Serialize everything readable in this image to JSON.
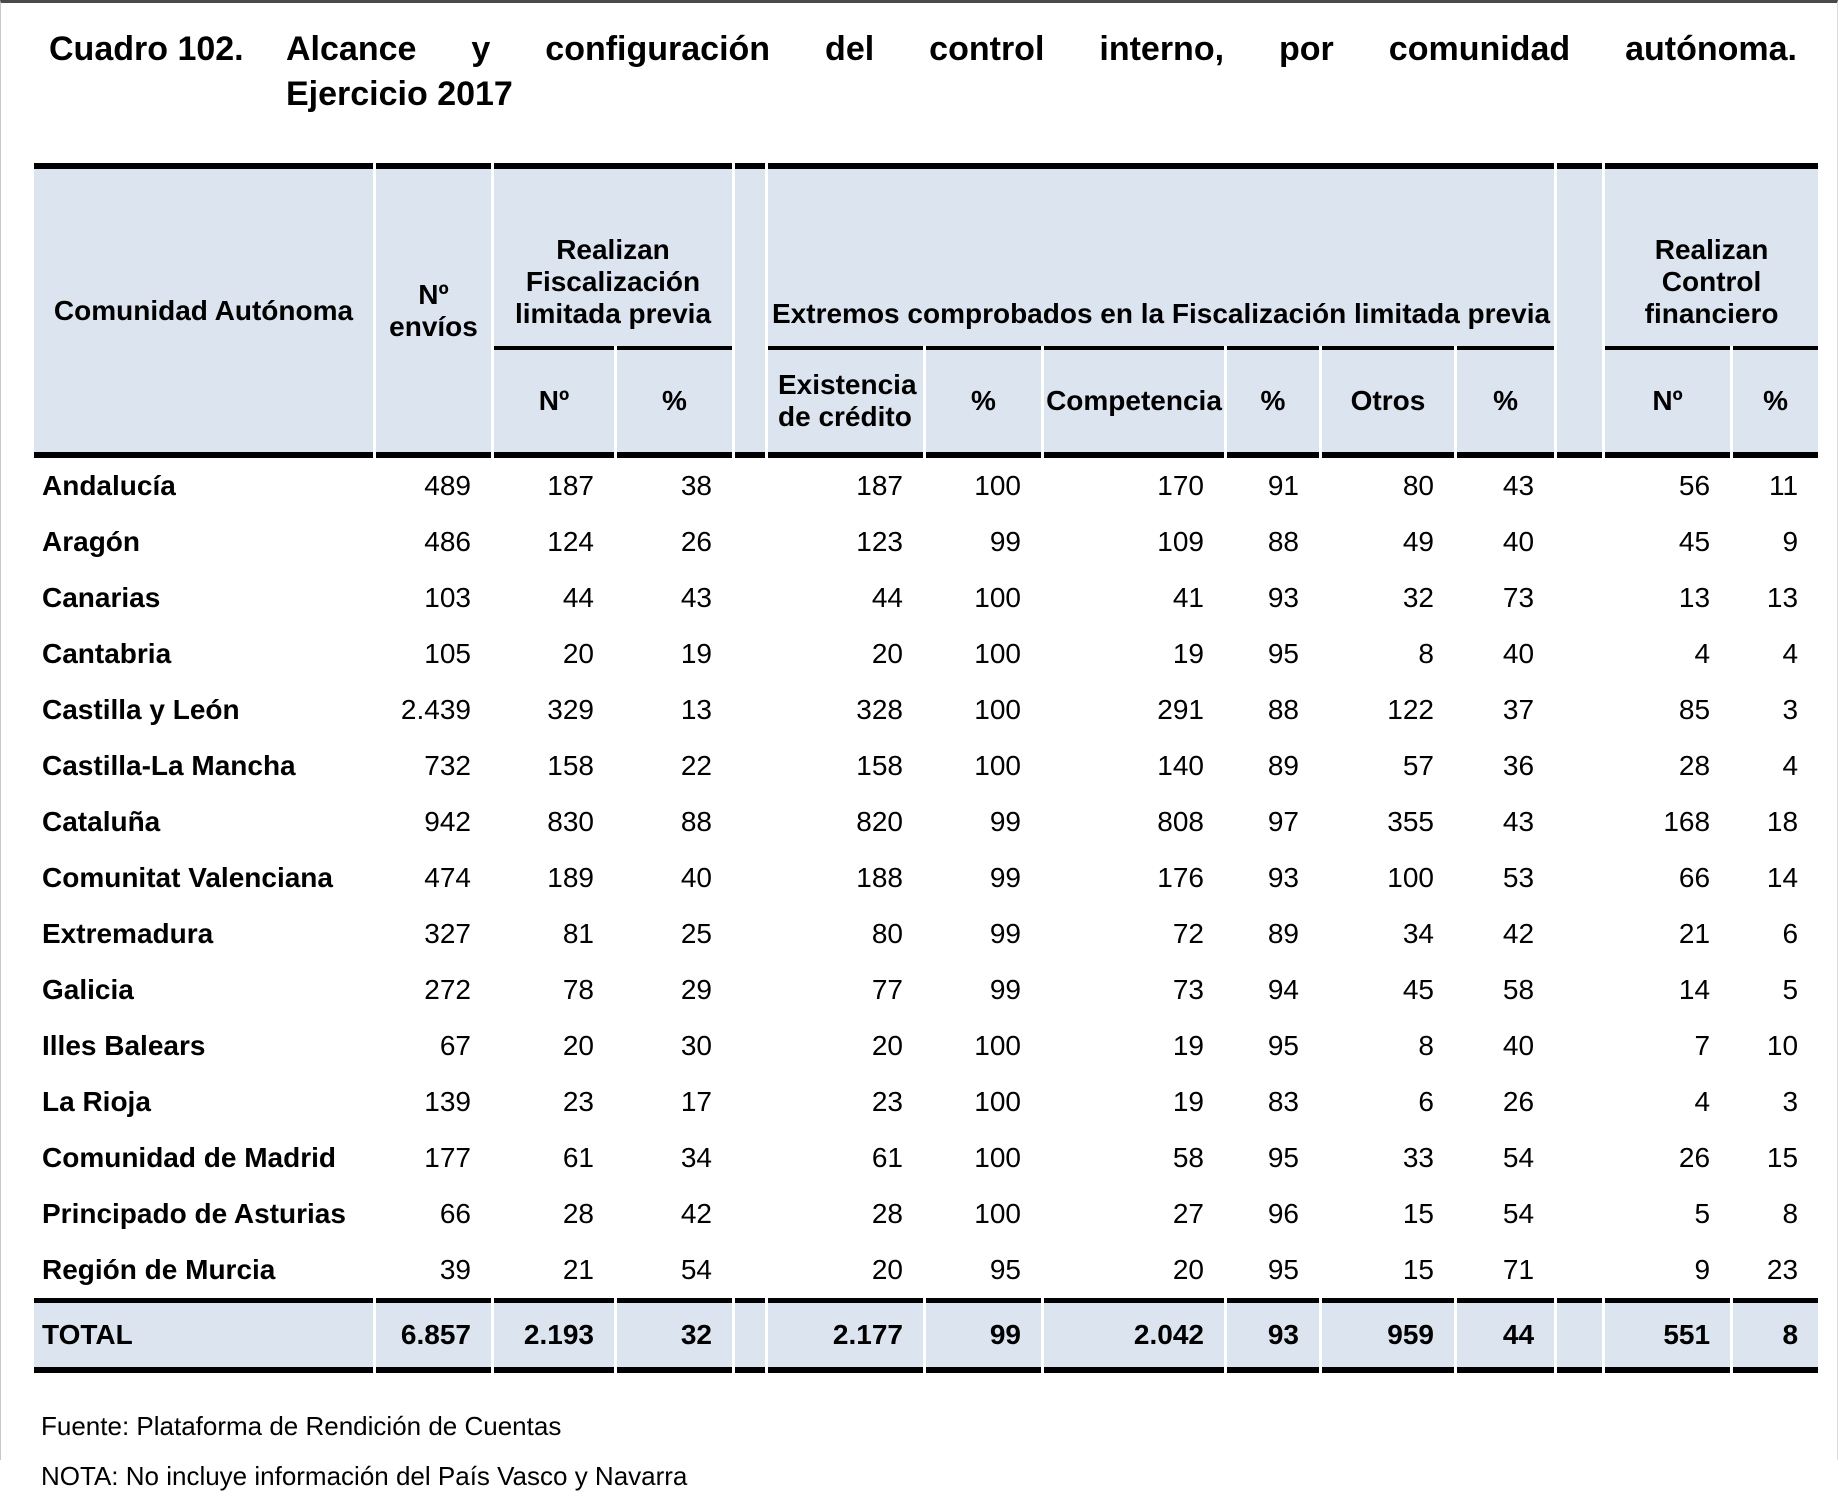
{
  "title": {
    "label": "Cuadro 102.",
    "line1": "Alcance y configuración del control interno, por comunidad autónoma.",
    "line2": "Ejercicio 2017"
  },
  "table": {
    "headers": {
      "comunidad": "Comunidad Autónoma",
      "envios": "Nº envíos",
      "fisc_group": "Realizan Fiscalización limitada previa",
      "extremos_group": "Extremos comprobados en la Fiscalización limitada previa",
      "control_group_line1": "Realizan Control",
      "control_group_line2": "financiero",
      "sub_fisc_n": "Nº",
      "sub_fisc_pct": "%",
      "sub_exist": "Existencia de crédito",
      "sub_exist_pct": "%",
      "sub_comp": "Competencia",
      "sub_comp_pct": "%",
      "sub_otros": "Otros",
      "sub_otros_pct": "%",
      "sub_ctrl_n": "Nº",
      "sub_ctrl_pct": "%"
    },
    "rows": [
      {
        "name": "Andalucía",
        "values": [
          "489",
          "187",
          "38",
          "187",
          "100",
          "170",
          "91",
          "80",
          "43",
          "56",
          "11"
        ]
      },
      {
        "name": "Aragón",
        "values": [
          "486",
          "124",
          "26",
          "123",
          "99",
          "109",
          "88",
          "49",
          "40",
          "45",
          "9"
        ]
      },
      {
        "name": "Canarias",
        "values": [
          "103",
          "44",
          "43",
          "44",
          "100",
          "41",
          "93",
          "32",
          "73",
          "13",
          "13"
        ]
      },
      {
        "name": "Cantabria",
        "values": [
          "105",
          "20",
          "19",
          "20",
          "100",
          "19",
          "95",
          "8",
          "40",
          "4",
          "4"
        ]
      },
      {
        "name": "Castilla y León",
        "values": [
          "2.439",
          "329",
          "13",
          "328",
          "100",
          "291",
          "88",
          "122",
          "37",
          "85",
          "3"
        ]
      },
      {
        "name": "Castilla-La Mancha",
        "values": [
          "732",
          "158",
          "22",
          "158",
          "100",
          "140",
          "89",
          "57",
          "36",
          "28",
          "4"
        ]
      },
      {
        "name": "Cataluña",
        "values": [
          "942",
          "830",
          "88",
          "820",
          "99",
          "808",
          "97",
          "355",
          "43",
          "168",
          "18"
        ]
      },
      {
        "name": "Comunitat Valenciana",
        "values": [
          "474",
          "189",
          "40",
          "188",
          "99",
          "176",
          "93",
          "100",
          "53",
          "66",
          "14"
        ]
      },
      {
        "name": "Extremadura",
        "values": [
          "327",
          "81",
          "25",
          "80",
          "99",
          "72",
          "89",
          "34",
          "42",
          "21",
          "6"
        ]
      },
      {
        "name": "Galicia",
        "values": [
          "272",
          "78",
          "29",
          "77",
          "99",
          "73",
          "94",
          "45",
          "58",
          "14",
          "5"
        ]
      },
      {
        "name": "Illes Balears",
        "values": [
          "67",
          "20",
          "30",
          "20",
          "100",
          "19",
          "95",
          "8",
          "40",
          "7",
          "10"
        ]
      },
      {
        "name": "La Rioja",
        "values": [
          "139",
          "23",
          "17",
          "23",
          "100",
          "19",
          "83",
          "6",
          "26",
          "4",
          "3"
        ]
      },
      {
        "name": "Comunidad de Madrid",
        "values": [
          "177",
          "61",
          "34",
          "61",
          "100",
          "58",
          "95",
          "33",
          "54",
          "26",
          "15"
        ]
      },
      {
        "name": "Principado de Asturias",
        "values": [
          "66",
          "28",
          "42",
          "28",
          "100",
          "27",
          "96",
          "15",
          "54",
          "5",
          "8"
        ]
      },
      {
        "name": "Región de Murcia",
        "values": [
          "39",
          "21",
          "54",
          "20",
          "95",
          "20",
          "95",
          "15",
          "71",
          "9",
          "23"
        ]
      }
    ],
    "total": {
      "name": "TOTAL",
      "values": [
        "6.857",
        "2.193",
        "32",
        "2.177",
        "99",
        "2.042",
        "93",
        "959",
        "44",
        "551",
        "8"
      ]
    }
  },
  "footer": {
    "fuente": "Fuente: Plataforma de Rendición de Cuentas",
    "nota": "NOTA: No incluye información del País Vasco y Navarra"
  },
  "colors": {
    "header_bg": "#dce4f0",
    "rule": "#000000"
  }
}
